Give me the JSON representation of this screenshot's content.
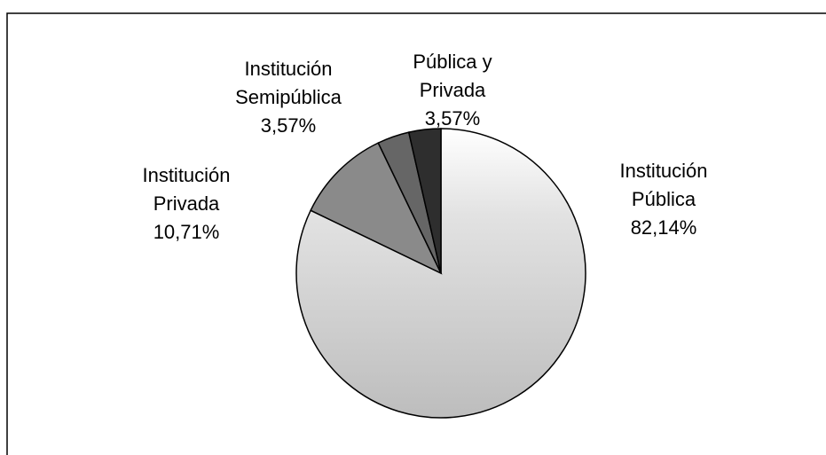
{
  "chart_data": {
    "type": "pie",
    "categories": [
      "Institución Pública",
      "Institución Privada",
      "Institución Semipública",
      "Pública y Privada"
    ],
    "values": [
      82.14,
      10.71,
      3.57,
      3.57
    ],
    "value_labels": [
      "82,14%",
      "10,71%",
      "3,57%",
      "3,57%"
    ],
    "colors": [
      "#bdbdbd",
      "#8a8a8a",
      "#666666",
      "#2e2e2e"
    ]
  }
}
